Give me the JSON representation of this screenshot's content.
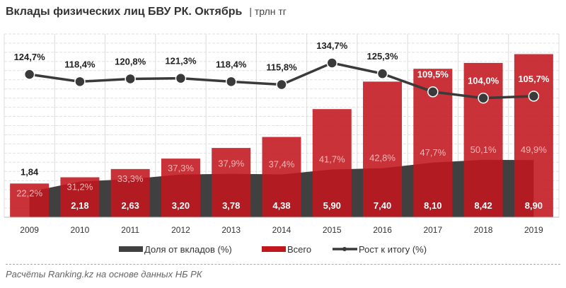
{
  "title": "Вклады физических лиц БВУ РК. Октябрь",
  "unit": "| трлн тг",
  "source": "Расчёты Ranking.kz на основе данных НБ РК",
  "colors": {
    "bar": "#c0161c",
    "area": "#404040",
    "line": "#3a3a3a"
  },
  "chart_data": {
    "type": "bar",
    "categories": [
      "2009",
      "2010",
      "2011",
      "2012",
      "2013",
      "2014",
      "2015",
      "2016",
      "2017",
      "2018",
      "2019"
    ],
    "series": [
      {
        "name": "Доля от вкладов (%)",
        "type": "area",
        "axis": "secondary",
        "values": [
          22.2,
          31.2,
          33.3,
          37.3,
          37.9,
          37.4,
          41.7,
          42.8,
          47.7,
          50.1,
          49.9
        ],
        "labels": [
          "22,2%",
          "31,2%",
          "33,3%",
          "37,3%",
          "37,9%",
          "37,4%",
          "41,7%",
          "42,8%",
          "47,7%",
          "50,1%",
          "49,9%"
        ]
      },
      {
        "name": "Всего",
        "type": "bar",
        "axis": "primary",
        "values": [
          1.84,
          2.18,
          2.63,
          3.2,
          3.78,
          4.38,
          5.9,
          7.4,
          8.1,
          8.42,
          8.9
        ],
        "labels": [
          "1,84",
          "2,18",
          "2,63",
          "3,20",
          "3,78",
          "4,38",
          "5,90",
          "7,40",
          "8,10",
          "8,42",
          "8,90"
        ]
      },
      {
        "name": "Рост к итогу (%)",
        "type": "line",
        "axis": "secondary",
        "values": [
          124.7,
          118.4,
          120.8,
          121.3,
          118.4,
          115.8,
          134.7,
          125.3,
          109.5,
          104.0,
          105.7
        ],
        "labels": [
          "124,7%",
          "118,4%",
          "120,8%",
          "121,3%",
          "118,4%",
          "115,8%",
          "134,7%",
          "125,3%",
          "109,5%",
          "104,0%",
          "105,7%"
        ]
      }
    ],
    "ylim": [
      0,
      10
    ],
    "y2lim": [
      0,
      160
    ],
    "grid": true,
    "legend": "bottom"
  }
}
